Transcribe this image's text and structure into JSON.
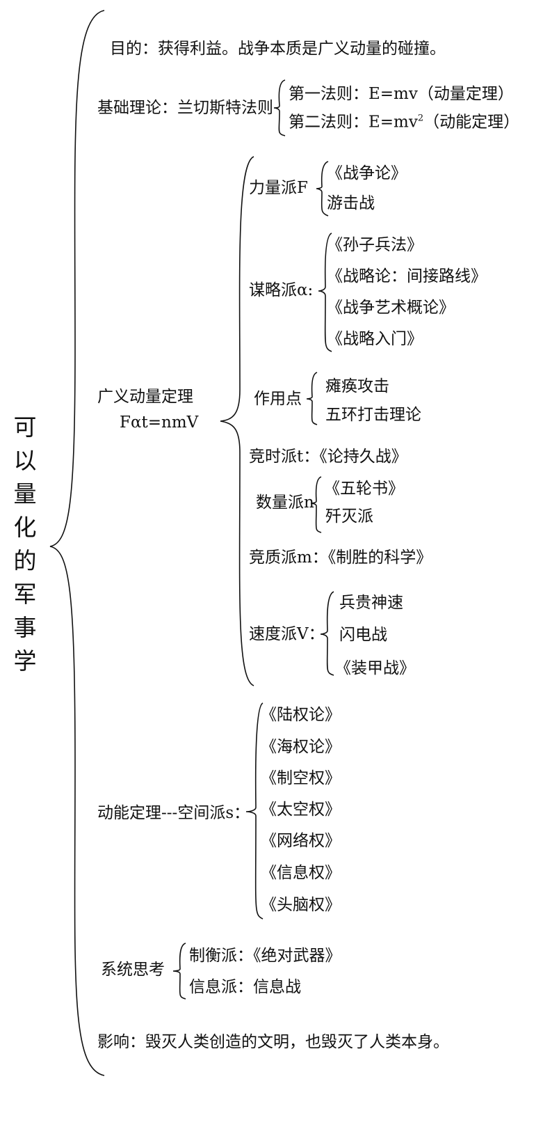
{
  "title": "可以量化的军事学",
  "purpose": "目的：获得利益。战争本质是广义动量的碰撞。",
  "basis": {
    "label": "基础理论：兰切斯特法则",
    "law1": "第一法则：E=mv（动量定理）",
    "law2_pre": "第二法则：E=mv",
    "law2_sup": "2",
    "law2_post": "（动能定理）"
  },
  "momentum": {
    "label": "广义动量定理",
    "formula": "Fαt=nmV",
    "schools": {
      "force": {
        "label": "力量派F",
        "items": [
          "《战争论》",
          "游击战"
        ]
      },
      "strategy": {
        "label": "谋略派α:",
        "items": [
          "《孙子兵法》",
          "《战略论：间接路线》",
          "《战争艺术概论》",
          "《战略入门》"
        ]
      },
      "point": {
        "label": "作用点",
        "items": [
          "瘫痪攻击",
          "五环打击理论"
        ]
      },
      "time": "竞时派t：《论持久战》",
      "number": {
        "label": "数量派n",
        "items": [
          "《五轮书》",
          "歼灭派"
        ]
      },
      "quality": "竞质派m：《制胜的科学》",
      "speed": {
        "label": "速度派V：",
        "items": [
          "兵贵神速",
          "闪电战",
          "《装甲战》"
        ]
      }
    }
  },
  "kinetic": {
    "label": "动能定理---空间派s：",
    "items": [
      "《陆权论》",
      "《海权论》",
      "《制空权》",
      "《太空权》",
      "《网络权》",
      "《信息权》",
      "《头脑权》"
    ]
  },
  "system": {
    "label": "系统思考",
    "items": [
      "制衡派：《绝对武器》",
      "信息派：信息战"
    ]
  },
  "impact": "影响：毁灭人类创造的文明，也毁灭了人类本身。"
}
